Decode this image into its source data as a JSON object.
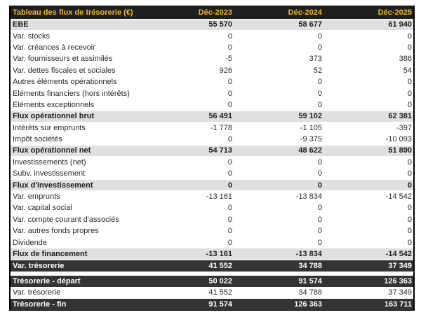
{
  "colors": {
    "page_background": "#ffffff",
    "header_background": "#1f1f1f",
    "header_text": "#f3b71f",
    "subtotal_row_background": "#e0e0e0",
    "dark_row_background": "#333333",
    "dark_row_text": "#ffffff",
    "body_text": "#2b2b2b",
    "table_border": "#000000"
  },
  "table": {
    "title": "Tableau des flux de trésorerie (€)",
    "columns": [
      "Déc-2023",
      "Déc-2024",
      "Déc-2025"
    ],
    "rows": [
      {
        "label": "EBE",
        "values": [
          "55 570",
          "58 677",
          "61 940"
        ],
        "style": "subtotal"
      },
      {
        "label": "Var. stocks",
        "values": [
          "0",
          "0",
          "0"
        ],
        "style": "normal"
      },
      {
        "label": "Var. créances à recevoir",
        "values": [
          "0",
          "0",
          "0"
        ],
        "style": "normal"
      },
      {
        "label": "Var. fournisseurs et assimilés",
        "values": [
          "-5",
          "373",
          "386"
        ],
        "style": "normal"
      },
      {
        "label": "Var. dettes fiscales et sociales",
        "values": [
          "926",
          "52",
          "54"
        ],
        "style": "normal"
      },
      {
        "label": "Autres éléments opérationnels",
        "values": [
          "0",
          "0",
          "0"
        ],
        "style": "normal"
      },
      {
        "label": "Eléments financiers (hors intérêts)",
        "values": [
          "0",
          "0",
          "0"
        ],
        "style": "normal"
      },
      {
        "label": "Eléments exceptionnels",
        "values": [
          "0",
          "0",
          "0"
        ],
        "style": "normal"
      },
      {
        "label": "Flux opérationnel brut",
        "values": [
          "56 491",
          "59 102",
          "62 381"
        ],
        "style": "subtotal"
      },
      {
        "label": "Intérêts sur emprunts",
        "values": [
          "-1 778",
          "-1 105",
          "-397"
        ],
        "style": "normal"
      },
      {
        "label": "Impôt sociétés",
        "values": [
          "0",
          "-9 375",
          "-10 093"
        ],
        "style": "normal"
      },
      {
        "label": "Flux opérationnel net",
        "values": [
          "54 713",
          "48 622",
          "51 890"
        ],
        "style": "subtotal"
      },
      {
        "label": "Investissements (net)",
        "values": [
          "0",
          "0",
          "0"
        ],
        "style": "normal"
      },
      {
        "label": "Subv. investissement",
        "values": [
          "0",
          "0",
          "0"
        ],
        "style": "normal"
      },
      {
        "label": "Flux d'investissement",
        "values": [
          "0",
          "0",
          "0"
        ],
        "style": "subtotal"
      },
      {
        "label": "Var. emprunts",
        "values": [
          "-13 161",
          "-13 834",
          "-14 542"
        ],
        "style": "normal"
      },
      {
        "label": "Var. capital social",
        "values": [
          "0",
          "0",
          "0"
        ],
        "style": "normal"
      },
      {
        "label": "Var. compte courant d'associés",
        "values": [
          "0",
          "0",
          "0"
        ],
        "style": "normal"
      },
      {
        "label": "Var. autres fonds propres",
        "values": [
          "0",
          "0",
          "0"
        ],
        "style": "normal"
      },
      {
        "label": "Dividende",
        "values": [
          "0",
          "0",
          "0"
        ],
        "style": "normal"
      },
      {
        "label": "Flux de financement",
        "values": [
          "-13 161",
          "-13 834",
          "-14 542"
        ],
        "style": "subtotal"
      },
      {
        "label": "Var. trésorerie",
        "values": [
          "41 552",
          "34 788",
          "37 349"
        ],
        "style": "dark"
      },
      {
        "label": "",
        "values": [],
        "style": "spacer"
      },
      {
        "label": "Trésorerie - départ",
        "values": [
          "50 022",
          "91 574",
          "126 363"
        ],
        "style": "dark"
      },
      {
        "label": "Var. trésorerie",
        "values": [
          "41 552",
          "34 788",
          "37 349"
        ],
        "style": "normal"
      },
      {
        "label": "Trésorerie - fin",
        "values": [
          "91 574",
          "126 363",
          "163 711"
        ],
        "style": "dark"
      }
    ]
  },
  "chart_data": {
    "type": "table",
    "title": "Tableau des flux de trésorerie (€)",
    "columns": [
      "Déc-2023",
      "Déc-2024",
      "Déc-2025"
    ],
    "rows": [
      {
        "label": "EBE",
        "values": [
          55570,
          58677,
          61940
        ]
      },
      {
        "label": "Var. stocks",
        "values": [
          0,
          0,
          0
        ]
      },
      {
        "label": "Var. créances à recevoir",
        "values": [
          0,
          0,
          0
        ]
      },
      {
        "label": "Var. fournisseurs et assimilés",
        "values": [
          -5,
          373,
          386
        ]
      },
      {
        "label": "Var. dettes fiscales et sociales",
        "values": [
          926,
          52,
          54
        ]
      },
      {
        "label": "Autres éléments opérationnels",
        "values": [
          0,
          0,
          0
        ]
      },
      {
        "label": "Eléments financiers (hors intérêts)",
        "values": [
          0,
          0,
          0
        ]
      },
      {
        "label": "Eléments exceptionnels",
        "values": [
          0,
          0,
          0
        ]
      },
      {
        "label": "Flux opérationnel brut",
        "values": [
          56491,
          59102,
          62381
        ]
      },
      {
        "label": "Intérêts sur emprunts",
        "values": [
          -1778,
          -1105,
          -397
        ]
      },
      {
        "label": "Impôt sociétés",
        "values": [
          0,
          -9375,
          -10093
        ]
      },
      {
        "label": "Flux opérationnel net",
        "values": [
          54713,
          48622,
          51890
        ]
      },
      {
        "label": "Investissements (net)",
        "values": [
          0,
          0,
          0
        ]
      },
      {
        "label": "Subv. investissement",
        "values": [
          0,
          0,
          0
        ]
      },
      {
        "label": "Flux d'investissement",
        "values": [
          0,
          0,
          0
        ]
      },
      {
        "label": "Var. emprunts",
        "values": [
          -13161,
          -13834,
          -14542
        ]
      },
      {
        "label": "Var. capital social",
        "values": [
          0,
          0,
          0
        ]
      },
      {
        "label": "Var. compte courant d'associés",
        "values": [
          0,
          0,
          0
        ]
      },
      {
        "label": "Var. autres fonds propres",
        "values": [
          0,
          0,
          0
        ]
      },
      {
        "label": "Dividende",
        "values": [
          0,
          0,
          0
        ]
      },
      {
        "label": "Flux de financement",
        "values": [
          -13161,
          -13834,
          -14542
        ]
      },
      {
        "label": "Var. trésorerie",
        "values": [
          41552,
          34788,
          37349
        ]
      },
      {
        "label": "Trésorerie - départ",
        "values": [
          50022,
          91574,
          126363
        ]
      },
      {
        "label": "Var. trésorerie",
        "values": [
          41552,
          34788,
          37349
        ]
      },
      {
        "label": "Trésorerie - fin",
        "values": [
          91574,
          126363,
          163711
        ]
      }
    ]
  }
}
